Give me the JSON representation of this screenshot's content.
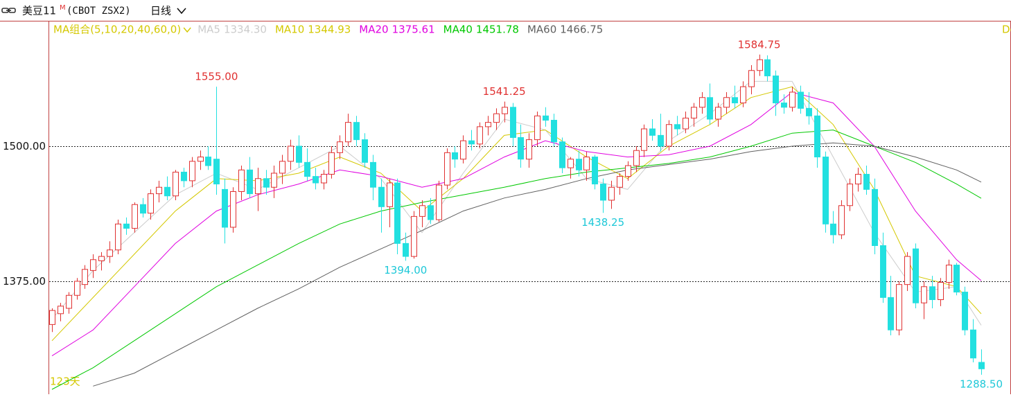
{
  "header": {
    "symbol": "美豆11",
    "sup": "M",
    "code": "(CBOT ZSX2)",
    "period": "日线"
  },
  "chart_data": {
    "type": "candlestick",
    "indicator": "MA组合(5,10,20,40,60,0)",
    "corner_text": "De",
    "days": "123天",
    "ylim": [
      1270.5,
      1616
    ],
    "yticks": [
      {
        "value": 1375,
        "label": "1375.00"
      },
      {
        "value": 1500,
        "label": "1500.00"
      }
    ],
    "grid": true,
    "up_color": "#e03030",
    "down_color": "#22e0e0",
    "candles": [
      [
        1335,
        1350,
        1328,
        1348
      ],
      [
        1345,
        1355,
        1338,
        1352
      ],
      [
        1350,
        1365,
        1345,
        1362
      ],
      [
        1362,
        1378,
        1358,
        1375
      ],
      [
        1372,
        1390,
        1368,
        1386
      ],
      [
        1385,
        1400,
        1378,
        1395
      ],
      [
        1394,
        1402,
        1385,
        1398
      ],
      [
        1398,
        1412,
        1392,
        1404
      ],
      [
        1404,
        1432,
        1400,
        1428
      ],
      [
        1428,
        1434,
        1418,
        1424
      ],
      [
        1424,
        1448,
        1420,
        1446
      ],
      [
        1446,
        1452,
        1434,
        1438
      ],
      [
        1438,
        1460,
        1432,
        1456
      ],
      [
        1456,
        1468,
        1448,
        1462
      ],
      [
        1462,
        1472,
        1450,
        1454
      ],
      [
        1454,
        1478,
        1450,
        1476
      ],
      [
        1476,
        1480,
        1462,
        1468
      ],
      [
        1468,
        1490,
        1462,
        1486
      ],
      [
        1486,
        1496,
        1478,
        1490
      ],
      [
        1490,
        1500,
        1478,
        1482
      ],
      [
        1488,
        1555,
        1455,
        1465
      ],
      [
        1460,
        1470,
        1410,
        1425
      ],
      [
        1425,
        1462,
        1420,
        1458
      ],
      [
        1458,
        1482,
        1450,
        1478
      ],
      [
        1478,
        1490,
        1452,
        1456
      ],
      [
        1456,
        1480,
        1440,
        1470
      ],
      [
        1470,
        1478,
        1455,
        1462
      ],
      [
        1462,
        1482,
        1452,
        1475
      ],
      [
        1475,
        1492,
        1465,
        1486
      ],
      [
        1486,
        1506,
        1478,
        1500
      ],
      [
        1500,
        1510,
        1480,
        1485
      ],
      [
        1485,
        1498,
        1468,
        1472
      ],
      [
        1472,
        1480,
        1460,
        1466
      ],
      [
        1466,
        1478,
        1460,
        1474
      ],
      [
        1474,
        1500,
        1470,
        1494
      ],
      [
        1494,
        1510,
        1488,
        1504
      ],
      [
        1504,
        1530,
        1500,
        1522
      ],
      [
        1522,
        1528,
        1500,
        1506
      ],
      [
        1506,
        1512,
        1480,
        1485
      ],
      [
        1485,
        1492,
        1450,
        1462
      ],
      [
        1462,
        1470,
        1420,
        1444
      ],
      [
        1444,
        1470,
        1425,
        1466
      ],
      [
        1466,
        1470,
        1400,
        1410
      ],
      [
        1410,
        1420,
        1394,
        1398
      ],
      [
        1398,
        1440,
        1396,
        1435
      ],
      [
        1435,
        1450,
        1425,
        1445
      ],
      [
        1445,
        1452,
        1428,
        1432
      ],
      [
        1432,
        1468,
        1430,
        1464
      ],
      [
        1464,
        1498,
        1460,
        1494
      ],
      [
        1494,
        1500,
        1480,
        1488
      ],
      [
        1488,
        1510,
        1484,
        1505
      ],
      [
        1505,
        1515,
        1496,
        1502
      ],
      [
        1502,
        1522,
        1498,
        1518
      ],
      [
        1518,
        1528,
        1510,
        1522
      ],
      [
        1522,
        1535,
        1515,
        1530
      ],
      [
        1530,
        1541.25,
        1522,
        1536
      ],
      [
        1536,
        1540,
        1500,
        1508
      ],
      [
        1508,
        1520,
        1480,
        1488
      ],
      [
        1488,
        1512,
        1480,
        1506
      ],
      [
        1506,
        1532,
        1500,
        1528
      ],
      [
        1528,
        1536,
        1518,
        1524
      ],
      [
        1524,
        1530,
        1500,
        1504
      ],
      [
        1504,
        1508,
        1475,
        1480
      ],
      [
        1480,
        1490,
        1470,
        1488
      ],
      [
        1488,
        1496,
        1472,
        1478
      ],
      [
        1478,
        1495,
        1468,
        1490
      ],
      [
        1490,
        1492,
        1460,
        1465
      ],
      [
        1465,
        1470,
        1438.25,
        1450
      ],
      [
        1450,
        1468,
        1442,
        1462
      ],
      [
        1462,
        1475,
        1455,
        1472
      ],
      [
        1472,
        1486,
        1468,
        1482
      ],
      [
        1482,
        1500,
        1476,
        1496
      ],
      [
        1496,
        1520,
        1490,
        1516
      ],
      [
        1516,
        1525,
        1505,
        1510
      ],
      [
        1510,
        1530,
        1495,
        1500
      ],
      [
        1500,
        1524,
        1496,
        1520
      ],
      [
        1520,
        1528,
        1510,
        1516
      ],
      [
        1516,
        1532,
        1512,
        1526
      ],
      [
        1526,
        1540,
        1518,
        1536
      ],
      [
        1536,
        1550,
        1530,
        1545
      ],
      [
        1545,
        1558,
        1520,
        1525
      ],
      [
        1525,
        1540,
        1518,
        1536
      ],
      [
        1536,
        1550,
        1530,
        1545
      ],
      [
        1545,
        1556,
        1535,
        1540
      ],
      [
        1540,
        1560,
        1536,
        1555
      ],
      [
        1555,
        1575,
        1548,
        1570
      ],
      [
        1570,
        1584.75,
        1565,
        1580
      ],
      [
        1580,
        1584,
        1560,
        1565
      ],
      [
        1565,
        1570,
        1528,
        1540
      ],
      [
        1540,
        1548,
        1530,
        1536
      ],
      [
        1536,
        1555,
        1532,
        1550
      ],
      [
        1550,
        1556,
        1530,
        1535
      ],
      [
        1535,
        1550,
        1520,
        1528
      ],
      [
        1528,
        1535,
        1480,
        1490
      ],
      [
        1490,
        1495,
        1420,
        1428
      ],
      [
        1428,
        1440,
        1410,
        1418
      ],
      [
        1418,
        1450,
        1414,
        1445
      ],
      [
        1445,
        1470,
        1440,
        1465
      ],
      [
        1465,
        1480,
        1458,
        1474
      ],
      [
        1474,
        1482,
        1455,
        1460
      ],
      [
        1460,
        1470,
        1400,
        1408
      ],
      [
        1408,
        1420,
        1355,
        1360
      ],
      [
        1360,
        1380,
        1325,
        1330
      ],
      [
        1330,
        1375,
        1325,
        1372
      ],
      [
        1372,
        1402,
        1366,
        1398
      ],
      [
        1405,
        1410,
        1350,
        1355
      ],
      [
        1355,
        1375,
        1340,
        1370
      ],
      [
        1370,
        1380,
        1350,
        1358
      ],
      [
        1358,
        1378,
        1352,
        1374
      ],
      [
        1374,
        1395,
        1368,
        1390
      ],
      [
        1390,
        1392,
        1362,
        1365
      ],
      [
        1365,
        1370,
        1325,
        1330
      ],
      [
        1330,
        1340,
        1300,
        1304
      ],
      [
        1300,
        1312,
        1288.5,
        1294
      ]
    ],
    "ma_x": [
      0,
      5,
      10,
      15,
      20,
      25,
      30,
      35,
      40,
      45,
      50,
      55,
      60,
      65,
      70,
      75,
      80,
      85,
      90,
      95,
      100,
      105,
      110,
      113
    ],
    "series": [
      {
        "name": "MA5",
        "color": "#cccccc",
        "current": {
          "value": 1334.3,
          "label": "1334.30"
        },
        "values": [
          1340,
          1385,
          1420,
          1455,
          1475,
          1460,
          1480,
          1500,
          1470,
          1420,
          1475,
          1525,
          1515,
          1470,
          1460,
          1505,
          1530,
          1560,
          1560,
          1490,
          1420,
          1365,
          1370,
          1334.3
        ]
      },
      {
        "name": "MA10",
        "color": "#d4c800",
        "current": {
          "value": 1344.93,
          "label": "1344.93"
        },
        "values": [
          1320,
          1360,
          1400,
          1440,
          1470,
          1468,
          1475,
          1490,
          1475,
          1440,
          1470,
          1510,
          1515,
          1490,
          1470,
          1500,
          1520,
          1545,
          1555,
          1520,
          1460,
          1380,
          1370,
          1344.93
        ]
      },
      {
        "name": "MA20",
        "color": "#e000e0",
        "current": {
          "value": 1375.61,
          "label": "1375.61"
        },
        "values": [
          1306,
          1330,
          1370,
          1410,
          1440,
          1455,
          1465,
          1478,
          1472,
          1462,
          1470,
          1490,
          1505,
          1495,
          1490,
          1492,
          1500,
          1520,
          1550,
          1540,
          1500,
          1440,
          1395,
          1375.61
        ]
      },
      {
        "name": "MA40",
        "color": "#00c800",
        "current": {
          "value": 1451.78,
          "label": "1451.78"
        },
        "values": [
          1275,
          1295,
          1320,
          1345,
          1370,
          1390,
          1410,
          1428,
          1440,
          1448,
          1455,
          1462,
          1470,
          1476,
          1480,
          1484,
          1490,
          1500,
          1512,
          1515,
          1500,
          1485,
          1465,
          1451.78
        ]
      },
      {
        "name": "MA60",
        "color": "#606060",
        "current": {
          "value": 1466.75,
          "label": "1466.75"
        },
        "values": [
          null,
          1278,
          1290,
          1310,
          1330,
          1350,
          1368,
          1388,
          1405,
          1422,
          1440,
          1452,
          1460,
          1470,
          1478,
          1483,
          1488,
          1495,
          1500,
          1503,
          1500,
          1490,
          1478,
          1466.75
        ]
      }
    ],
    "annotations": [
      {
        "index": 20,
        "value": 1555,
        "label": "1555.00",
        "side": "high"
      },
      {
        "index": 43,
        "value": 1394,
        "label": "1394.00",
        "side": "low"
      },
      {
        "index": 55,
        "value": 1541.25,
        "label": "1541.25",
        "side": "high"
      },
      {
        "index": 67,
        "value": 1438.25,
        "label": "1438.25",
        "side": "low"
      },
      {
        "index": 86,
        "value": 1584.75,
        "label": "1584.75",
        "side": "high"
      },
      {
        "index": 113,
        "value": 1288.5,
        "label": "1288.50",
        "side": "low"
      }
    ]
  }
}
